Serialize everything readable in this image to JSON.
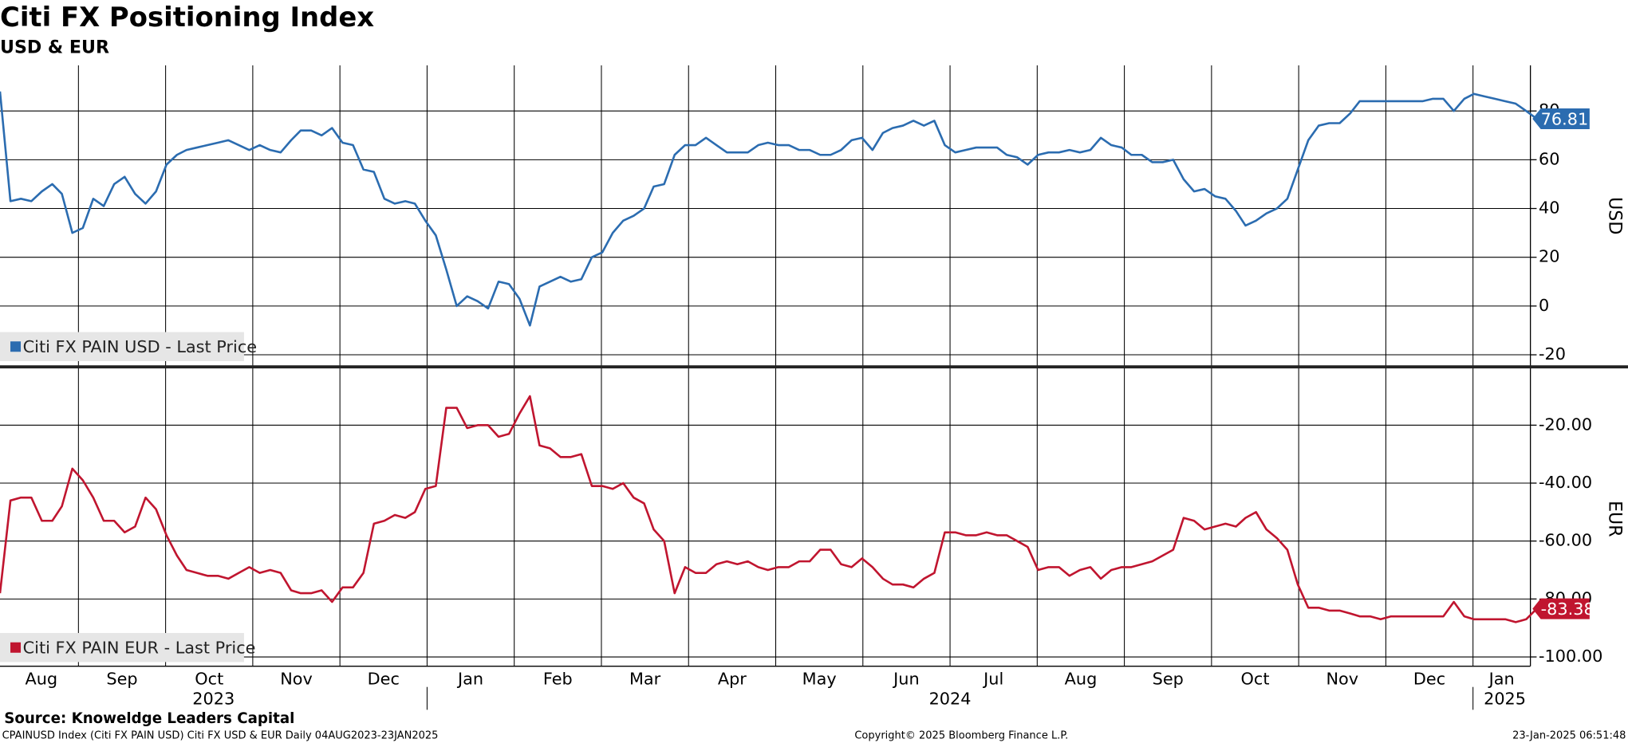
{
  "chart_data": {
    "type": "line",
    "title": "Citi FX Positioning Index",
    "subtitle": "USD & EUR",
    "ylabel": "USD",
    "y2label": "EUR",
    "x": [
      0.1,
      0.22,
      0.34,
      0.46,
      0.58,
      0.7,
      0.81,
      0.93,
      1.05,
      1.17,
      1.29,
      1.41,
      1.53,
      1.65,
      1.77,
      1.89,
      2.01,
      2.13,
      2.24,
      2.36,
      2.48,
      2.6,
      2.72,
      2.84,
      2.96,
      3.08,
      3.2,
      3.32,
      3.44,
      3.55,
      3.67,
      3.79,
      3.91,
      4.03,
      4.15,
      4.27,
      4.39,
      4.51,
      4.63,
      4.75,
      4.86,
      4.98,
      5.1,
      5.22,
      5.34,
      5.46,
      5.58,
      5.7,
      5.82,
      5.94,
      6.06,
      6.18,
      6.29,
      6.41,
      6.53,
      6.65,
      6.77,
      6.89,
      7.01,
      7.13,
      7.25,
      7.37,
      7.49,
      7.6,
      7.72,
      7.84,
      7.96,
      8.08,
      8.2,
      8.32,
      8.44,
      8.56,
      8.68,
      8.8,
      8.91,
      9.03,
      9.15,
      9.27,
      9.39,
      9.51,
      9.63,
      9.75,
      9.87,
      9.99,
      10.11,
      10.23,
      10.34,
      10.46,
      10.58,
      10.7,
      10.82,
      10.94,
      11.06,
      11.18,
      11.3,
      11.42,
      11.54,
      11.65,
      11.77,
      11.89,
      12.01,
      12.13,
      12.25,
      12.37,
      12.49,
      12.61,
      12.73,
      12.85,
      12.97,
      13.08,
      13.2,
      13.32,
      13.44,
      13.56,
      13.68,
      13.8,
      13.92,
      14.04,
      14.16,
      14.28,
      14.39,
      14.51,
      14.63,
      14.75,
      14.87,
      14.99,
      15.11,
      15.23,
      15.35,
      15.47,
      15.59,
      15.7,
      15.82,
      15.94,
      16.06,
      16.18,
      16.3,
      16.42,
      16.54,
      16.66,
      16.78,
      16.9,
      17.01,
      17.13,
      17.25,
      17.37,
      17.49,
      17.61,
      17.73
    ],
    "series": [
      {
        "name": "Citi FX PAIN USD - Last Price",
        "color": "#2b6cb0",
        "values": [
          88,
          43,
          44,
          43,
          47,
          50,
          46,
          30,
          32,
          44,
          41,
          50,
          53,
          46,
          42,
          47,
          58,
          62,
          64,
          65,
          66,
          67,
          68,
          66,
          64,
          66,
          64,
          63,
          68,
          72,
          72,
          70,
          73,
          67,
          66,
          56,
          55,
          44,
          42,
          43,
          42,
          35,
          29,
          15,
          0,
          4,
          2,
          -1,
          10,
          9,
          3,
          -8,
          8,
          10,
          12,
          10,
          11,
          20,
          22,
          30,
          35,
          37,
          40,
          49,
          50,
          62,
          66,
          66,
          69,
          66,
          63,
          63,
          63,
          66,
          67,
          66,
          66,
          64,
          64,
          62,
          62,
          64,
          68,
          69,
          64,
          71,
          73,
          74,
          76,
          74,
          76,
          66,
          63,
          64,
          65,
          65,
          65,
          62,
          61,
          58,
          62,
          63,
          63,
          64,
          63,
          64,
          69,
          66,
          65,
          62,
          62,
          59,
          59,
          60,
          52,
          47,
          48,
          45,
          44,
          39,
          33,
          35,
          38,
          40,
          44,
          56,
          68,
          74,
          75,
          75,
          79,
          84,
          84,
          84,
          84,
          84,
          84,
          84,
          85,
          85,
          80,
          85,
          87,
          86,
          85,
          84,
          83,
          80,
          76.81
        ]
      },
      {
        "name": "Citi FX PAIN EUR - Last Price",
        "color": "#c0152f",
        "axis": "y2",
        "values": [
          -78,
          -46,
          -45,
          -45,
          -53,
          -53,
          -48,
          -35,
          -39,
          -45,
          -53,
          -53,
          -57,
          -55,
          -45,
          -49,
          -58,
          -65,
          -70,
          -71,
          -72,
          -72,
          -73,
          -71,
          -69,
          -71,
          -70,
          -71,
          -77,
          -78,
          -78,
          -77,
          -81,
          -76,
          -76,
          -71,
          -54,
          -53,
          -51,
          -52,
          -50,
          -42,
          -41,
          -14,
          -14,
          -21,
          -20,
          -20,
          -24,
          -23,
          -16,
          -10,
          -27,
          -28,
          -31,
          -31,
          -30,
          -41,
          -41,
          -42,
          -40,
          -45,
          -47,
          -56,
          -60,
          -78,
          -69,
          -71,
          -71,
          -68,
          -67,
          -68,
          -67,
          -69,
          -70,
          -69,
          -69,
          -67,
          -67,
          -63,
          -63,
          -68,
          -69,
          -66,
          -69,
          -73,
          -75,
          -75,
          -76,
          -73,
          -71,
          -57,
          -57,
          -58,
          -58,
          -57,
          -58,
          -58,
          -60,
          -62,
          -70,
          -69,
          -69,
          -72,
          -70,
          -69,
          -73,
          -70,
          -69,
          -69,
          -68,
          -67,
          -65,
          -63,
          -52,
          -53,
          -56,
          -55,
          -54,
          -55,
          -52,
          -50,
          -56,
          -59,
          -63,
          -75,
          -83,
          -83,
          -84,
          -84,
          -85,
          -86,
          -86,
          -87,
          -86,
          -86,
          -86,
          -86,
          -86,
          -86,
          -81,
          -86,
          -87,
          -87,
          -87,
          -87,
          -88,
          -87,
          -83.38
        ]
      }
    ],
    "xlim": [
      0.1,
      17.73
    ],
    "xticks": [
      {
        "value": 0,
        "label": "Aug"
      },
      {
        "value": 1,
        "label": "Sep"
      },
      {
        "value": 2,
        "label": "Oct"
      },
      {
        "value": 3,
        "label": "Nov"
      },
      {
        "value": 4,
        "label": "Dec"
      },
      {
        "value": 5,
        "label": "Jan"
      },
      {
        "value": 6,
        "label": "Feb"
      },
      {
        "value": 7,
        "label": "Mar"
      },
      {
        "value": 8,
        "label": "Apr"
      },
      {
        "value": 9,
        "label": "May"
      },
      {
        "value": 10,
        "label": "Jun"
      },
      {
        "value": 11,
        "label": "Jul"
      },
      {
        "value": 12,
        "label": "Aug"
      },
      {
        "value": 13,
        "label": "Sep"
      },
      {
        "value": 14,
        "label": "Oct"
      },
      {
        "value": 15,
        "label": "Nov"
      },
      {
        "value": 16,
        "label": "Dec"
      },
      {
        "value": 17,
        "label": "Jan"
      }
    ],
    "years": [
      {
        "value": 0,
        "label": "2023"
      },
      {
        "value": 5,
        "label": "2024"
      },
      {
        "value": 17,
        "label": "2025"
      }
    ],
    "ylim": [
      -24.3,
      98.7
    ],
    "yticks": [
      -20,
      0,
      20,
      40,
      60,
      80
    ],
    "y2lim": [
      -103.2,
      -0.4
    ],
    "y2ticks": [
      {
        "value": -100,
        "label": "-100.00"
      },
      {
        "value": -80,
        "label": "-80.00"
      },
      {
        "value": -60,
        "label": "-60.00"
      },
      {
        "value": -40,
        "label": "-40.00"
      },
      {
        "value": -20,
        "label": "-20.00"
      }
    ],
    "grid": true,
    "footer": {
      "source": "Source: Knoweldge Leaders Capital",
      "description": "CPAINUSD Index (Citi FX PAIN USD) Citi FX USD & EUR  Daily 04AUG2023-23JAN2025",
      "copyright": "Copyright© 2025 Bloomberg Finance L.P.",
      "timestamp": "23-Jan-2025 06:51:48"
    }
  }
}
